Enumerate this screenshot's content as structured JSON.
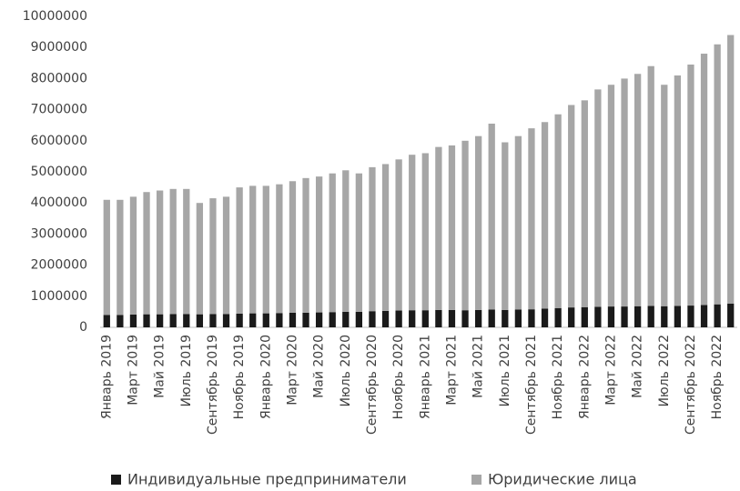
{
  "chart_data": {
    "type": "stacked_bar",
    "categories": [
      "Январь 2019",
      null,
      "Март 2019",
      null,
      "Май 2019",
      null,
      "Июль 2019",
      null,
      "Сентябрь 2019",
      null,
      "Ноябрь 2019",
      null,
      "Январь 2020",
      null,
      "Март 2020",
      null,
      "Май 2020",
      null,
      "Июль 2020",
      null,
      "Сентябрь 2020",
      null,
      "Ноябрь 2020",
      null,
      "Январь 2021",
      null,
      "Март 2021",
      null,
      "Май 2021",
      null,
      "Июль 2021",
      null,
      "Сентябрь 2021",
      null,
      "Ноябрь 2021",
      null,
      "Январь 2022",
      null,
      "Март 2022",
      null,
      "Май 2022",
      null,
      "Июль 2022",
      null,
      "Сентябрь 2022",
      null,
      "Ноябрь 2022",
      null
    ],
    "series": [
      {
        "name": "Индивидуальные предприниматели",
        "color": "#1a1a1a",
        "values": [
          400000,
          400000,
          410000,
          420000,
          420000,
          430000,
          430000,
          420000,
          430000,
          430000,
          440000,
          450000,
          450000,
          460000,
          470000,
          470000,
          480000,
          490000,
          500000,
          500000,
          520000,
          530000,
          540000,
          550000,
          550000,
          560000,
          560000,
          550000,
          560000,
          570000,
          560000,
          570000,
          580000,
          600000,
          620000,
          640000,
          650000,
          660000,
          670000,
          670000,
          680000,
          690000,
          680000,
          690000,
          700000,
          720000,
          740000,
          760000
        ]
      },
      {
        "name": "Юридические лица",
        "color": "#a6a6a6",
        "values": [
          3700000,
          3700000,
          3790000,
          3930000,
          3980000,
          4020000,
          4020000,
          3580000,
          3720000,
          3770000,
          4060000,
          4100000,
          4100000,
          4140000,
          4230000,
          4330000,
          4370000,
          4460000,
          4550000,
          4450000,
          4630000,
          4720000,
          4860000,
          5000000,
          5050000,
          5240000,
          5290000,
          5450000,
          5590000,
          5980000,
          5390000,
          5580000,
          5820000,
          6000000,
          6230000,
          6510000,
          6650000,
          6990000,
          7130000,
          7330000,
          7470000,
          7710000,
          7120000,
          7410000,
          7750000,
          8080000,
          8360000,
          8640000
        ]
      }
    ],
    "ylim": [
      0,
      10000000
    ],
    "yticks": [
      0,
      1000000,
      2000000,
      3000000,
      4000000,
      5000000,
      6000000,
      7000000,
      8000000,
      9000000,
      10000000
    ],
    "grid": false,
    "legend": "bottom"
  }
}
